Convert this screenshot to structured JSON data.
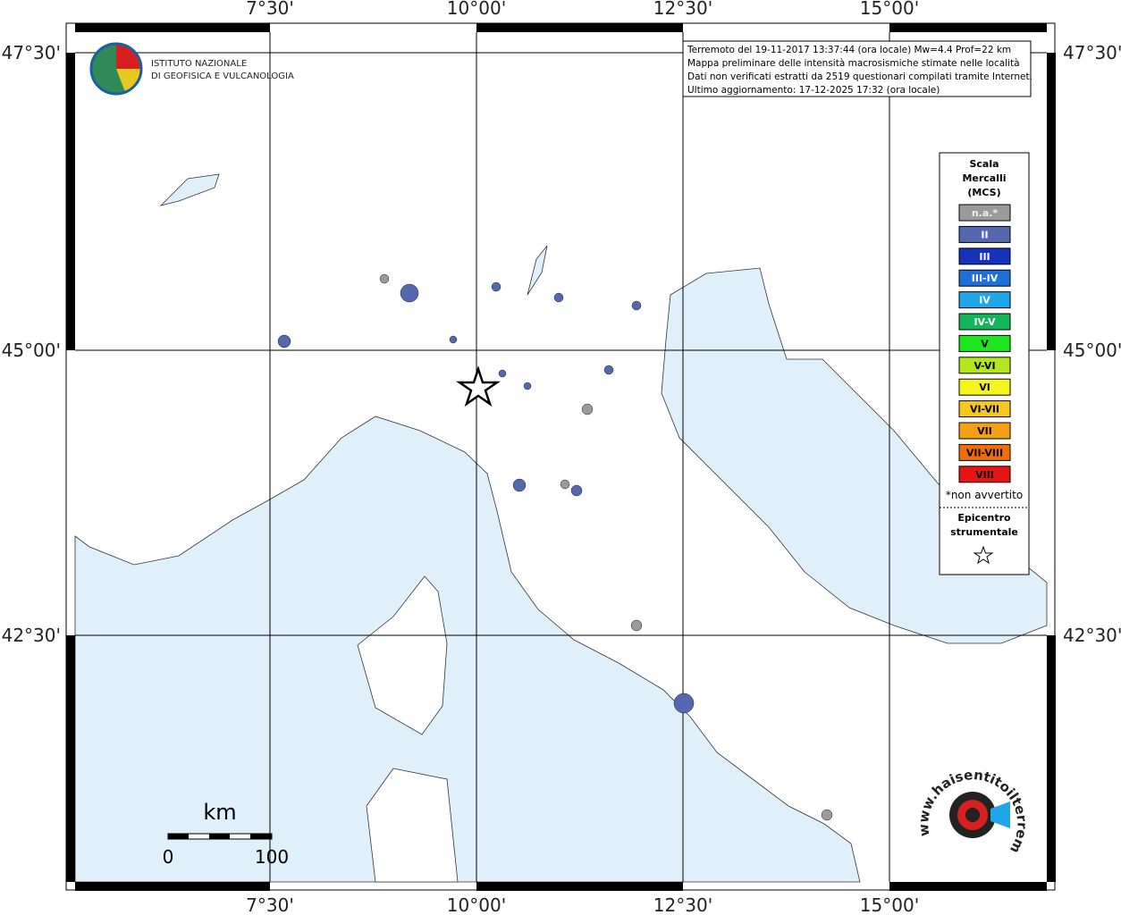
{
  "info": [
    "Terremoto del 19-11-2017 13:37:44 (ora locale) Mw=4.4 Prof=22 km",
    "Mappa preliminare delle intensità macrosismiche stimate nelle località",
    "Dati non verificati estratti da 2519 questionari compilati tramite Internet.",
    "Ultimo aggiornamento: 17-12-2025 17:32 (ora locale)"
  ],
  "logo": [
    "ISTITUTO NAZIONALE",
    "DI GEOFISICA E VULCANOLOGIA"
  ],
  "lon_labels": [
    "7°30'",
    "10°00'",
    "12°30'",
    "15°00'"
  ],
  "lat_labels": [
    "47°30'",
    "45°00'",
    "42°30'"
  ],
  "legend": {
    "title": [
      "Scala",
      "Mercalli",
      "(MCS)"
    ],
    "items": [
      {
        "label": "n.a.*",
        "color": "#9a9a9a"
      },
      {
        "label": "II",
        "color": "#5468b0"
      },
      {
        "label": "III",
        "color": "#1433b8"
      },
      {
        "label": "III-IV",
        "color": "#1e6fd6"
      },
      {
        "label": "IV",
        "color": "#1ea6e8"
      },
      {
        "label": "IV-V",
        "color": "#14b45a"
      },
      {
        "label": "V",
        "color": "#1ee61e"
      },
      {
        "label": "V-VI",
        "color": "#b4e61e"
      },
      {
        "label": "VI",
        "color": "#f5f51e"
      },
      {
        "label": "VI-VII",
        "color": "#f5c81e"
      },
      {
        "label": "VII",
        "color": "#f5a014"
      },
      {
        "label": "VII-VIII",
        "color": "#f06e0a"
      },
      {
        "label": "VIII",
        "color": "#e61414"
      }
    ],
    "note": "*non avvertito",
    "epicenter": [
      "Epicentro",
      "strumentale"
    ]
  },
  "scale_bar": {
    "unit": "km",
    "labels": [
      "0",
      "100"
    ]
  },
  "watermark": "www.haisentitoilterremoto.it"
}
